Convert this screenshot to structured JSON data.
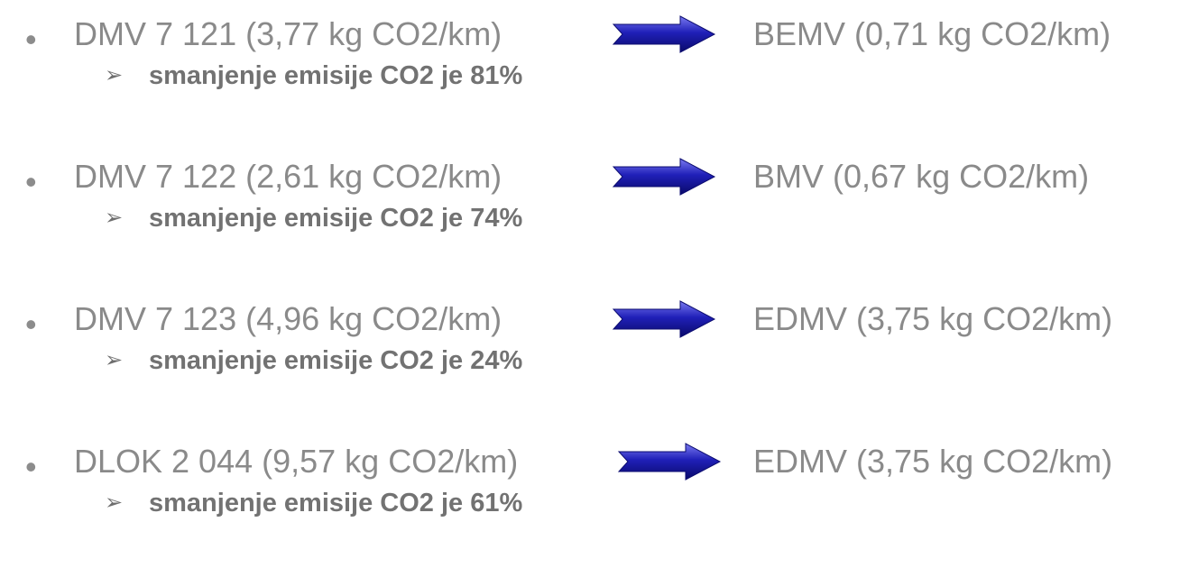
{
  "bullet_glyph": "•",
  "sub_marker_glyph": "➢",
  "arrow_color": "#1c1cae",
  "items": [
    {
      "from": "DMV 7 121 (3,77 kg CO2/km)",
      "to": "BEMV (0,71 kg CO2/km)",
      "reduction": "smanjenje emisije CO2 je 81%"
    },
    {
      "from": "DMV 7 122 (2,61 kg CO2/km)",
      "to": "BMV (0,67 kg CO2/km)",
      "reduction": "smanjenje emisije CO2 je 74%"
    },
    {
      "from": "DMV 7 123 (4,96 kg CO2/km)",
      "to": "EDMV (3,75 kg CO2/km)",
      "reduction": "smanjenje emisije CO2 je 24%"
    },
    {
      "from": "DLOK 2 044 (9,57 kg CO2/km)",
      "to": "EDMV (3,75 kg CO2/km)",
      "reduction": "smanjenje emisije CO2 je 61%"
    }
  ]
}
